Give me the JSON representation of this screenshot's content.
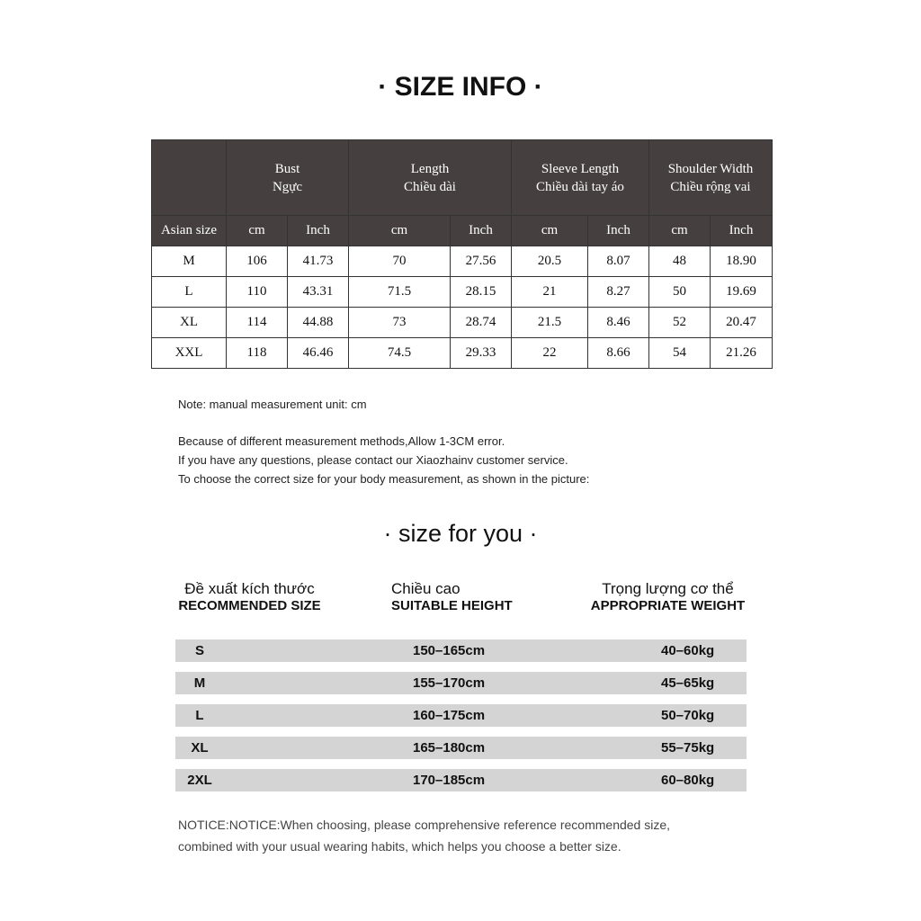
{
  "size_info": {
    "title": "· SIZE INFO ·",
    "group_headers": [
      [
        "Bust",
        "Ngực"
      ],
      [
        "Length",
        "Chiều dài"
      ],
      [
        "Sleeve Length",
        "Chiều dài tay áo"
      ],
      [
        "Shoulder Width",
        "Chiều rộng vai"
      ]
    ],
    "sub_headers": [
      "Asian size",
      "cm",
      "Inch",
      "cm",
      "Inch",
      "cm",
      "Inch",
      "cm",
      "Inch"
    ],
    "rows": [
      [
        "M",
        "106",
        "41.73",
        "70",
        "27.56",
        "20.5",
        "8.07",
        "48",
        "18.90"
      ],
      [
        "L",
        "110",
        "43.31",
        "71.5",
        "28.15",
        "21",
        "8.27",
        "50",
        "19.69"
      ],
      [
        "XL",
        "114",
        "44.88",
        "73",
        "28.74",
        "21.5",
        "8.46",
        "52",
        "20.47"
      ],
      [
        "XXL",
        "118",
        "46.46",
        "74.5",
        "29.33",
        "22",
        "8.66",
        "54",
        "21.26"
      ]
    ],
    "header_color": "#463f3f"
  },
  "notes": [
    "Note: manual measurement unit: cm",
    "Because of different measurement methods,Allow 1-3CM error.",
    "If you have any questions, please contact our Xiaozhainv customer service.",
    "To choose the correct size for your body measurement, as shown in the picture:"
  ],
  "size_for_you": {
    "title": "· size for you ·",
    "headers": [
      [
        "Đề xuất kích thước",
        "RECOMMENDED SIZE"
      ],
      [
        "Chiều cao",
        "SUITABLE HEIGHT"
      ],
      [
        "Trọng lượng cơ thể",
        "APPROPRIATE WEIGHT"
      ]
    ],
    "rows": [
      [
        "S",
        "150–165cm",
        "40–60kg"
      ],
      [
        "M",
        "155–170cm",
        "45–65kg"
      ],
      [
        "L",
        "160–175cm",
        "50–70kg"
      ],
      [
        "XL",
        "165–180cm",
        "55–75kg"
      ],
      [
        "2XL",
        "170–185cm",
        "60–80kg"
      ]
    ],
    "notice": [
      "NOTICE:NOTICE:When choosing, please comprehensive reference recommended size,",
      "combined with your usual wearing habits, which helps you choose a better size."
    ]
  }
}
